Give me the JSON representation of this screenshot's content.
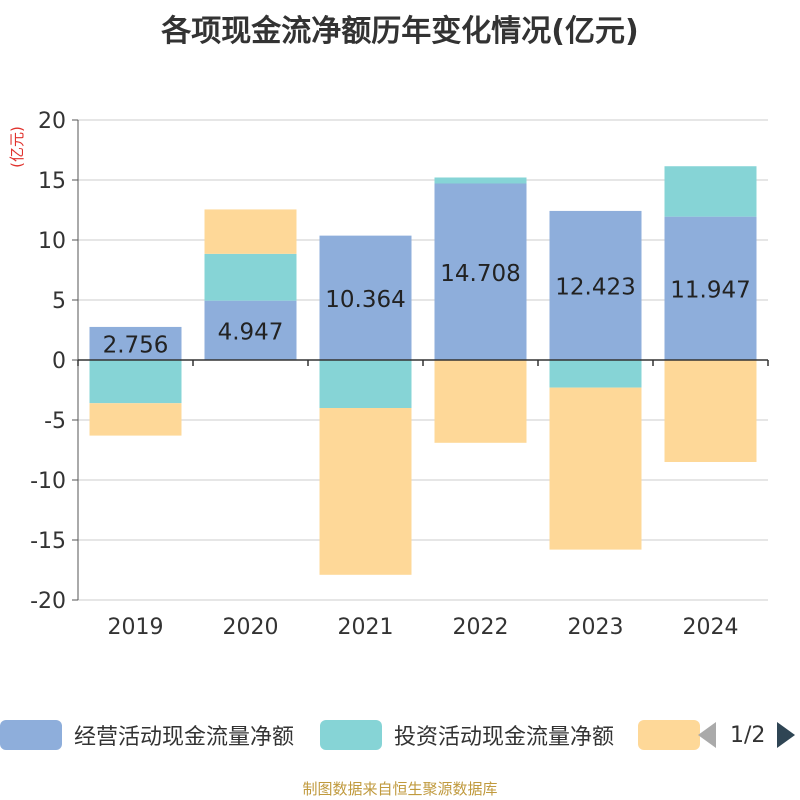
{
  "title": "各项现金流净额历年变化情况(亿元)",
  "source": "制图数据来自恒生聚源数据库",
  "legend": {
    "items": [
      {
        "label": "经营活动现金流量净额",
        "color": "#8eaedb"
      },
      {
        "label": "投资活动现金流量净额",
        "color": "#86d4d6"
      },
      {
        "label": "",
        "color": "#fed898"
      }
    ],
    "page_text": "1/2"
  },
  "chart_data": {
    "type": "bar",
    "stacked": true,
    "title": "各项现金流净额历年变化情况(亿元)",
    "ylabel": "(亿元)",
    "xlabel": "",
    "ylim": [
      -20,
      20
    ],
    "yticks": [
      20,
      15,
      10,
      5,
      0,
      -5,
      -10,
      -15,
      -20
    ],
    "grid": true,
    "legend_position": "bottom",
    "categories": [
      "2019",
      "2020",
      "2021",
      "2022",
      "2023",
      "2024"
    ],
    "series": [
      {
        "name": "经营活动现金流量净额",
        "color": "#8eaedb",
        "values": [
          2.756,
          4.947,
          10.364,
          14.708,
          12.423,
          11.947
        ],
        "labels": [
          "2.756",
          "4.947",
          "10.364",
          "14.708",
          "12.423",
          "11.947"
        ]
      },
      {
        "name": "投资活动现金流量净额",
        "color": "#86d4d6",
        "values": [
          -3.6,
          3.9,
          -4.0,
          0.5,
          -2.3,
          4.2
        ]
      },
      {
        "color": "#fed898",
        "values": [
          -2.7,
          3.7,
          -13.9,
          -6.9,
          -13.5,
          -8.5
        ]
      }
    ]
  }
}
